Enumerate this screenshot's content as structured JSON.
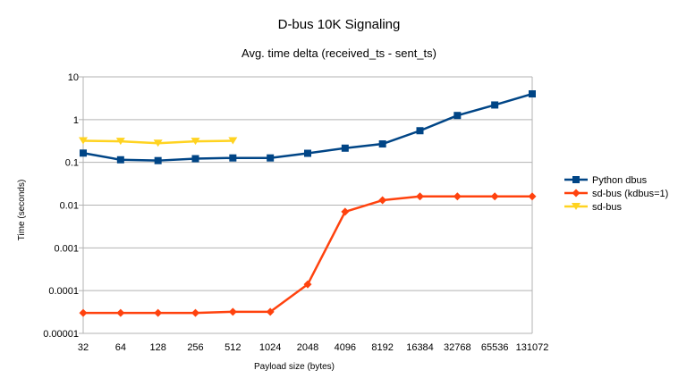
{
  "chart_data": {
    "type": "line",
    "title": "D-bus 10K Signaling",
    "subtitle": "Avg. time delta (received_ts - sent_ts)",
    "xlabel": "Payload size (bytes)",
    "ylabel": "Time (seconds)",
    "yscale": "log",
    "ylim": [
      1e-05,
      10
    ],
    "y_ticks": [
      "10",
      "1",
      "0.1",
      "0.01",
      "0.001",
      "0.0001",
      "0.00001"
    ],
    "grid": "horizontal",
    "legend_position": "right",
    "categories": [
      "32",
      "64",
      "128",
      "256",
      "512",
      "1024",
      "2048",
      "4096",
      "8192",
      "16384",
      "32768",
      "65536",
      "131072"
    ],
    "series": [
      {
        "name": "Python dbus",
        "color": "#004586",
        "marker": "square",
        "values": [
          0.165,
          0.115,
          0.11,
          0.122,
          0.127,
          0.127,
          0.163,
          0.215,
          0.27,
          0.55,
          1.25,
          2.2,
          4.0
        ]
      },
      {
        "name": "sd-bus (kdbus=1)",
        "color": "#ff420e",
        "marker": "diamond",
        "values": [
          3e-05,
          3e-05,
          3e-05,
          3e-05,
          3.2e-05,
          3.2e-05,
          0.00014,
          0.007,
          0.013,
          0.016,
          0.016,
          0.016,
          0.016
        ]
      },
      {
        "name": "sd-bus",
        "color": "#ffd320",
        "marker": "triangle-down",
        "values": [
          0.32,
          0.31,
          0.28,
          0.31,
          0.32,
          null,
          null,
          null,
          null,
          null,
          null,
          null,
          null
        ]
      }
    ]
  }
}
